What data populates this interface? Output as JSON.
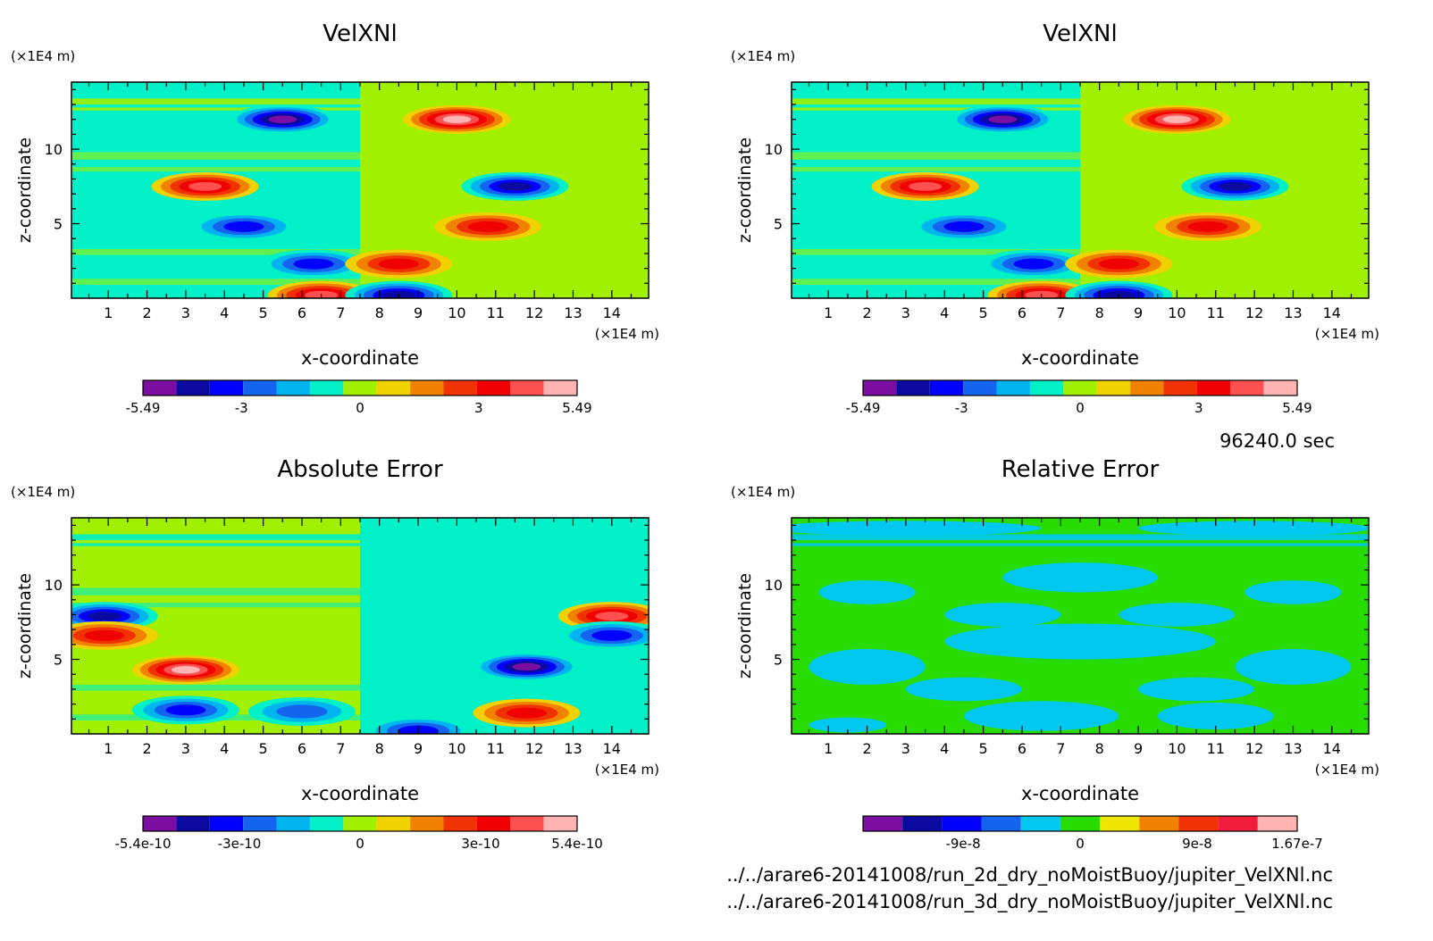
{
  "figure": {
    "time_label": "96240.0 sec",
    "files": [
      "../../arare6-20141008/run_2d_dry_noMoistBuoy/jupiter_VelXNl.nc",
      "../../arare6-20141008/run_3d_dry_noMoistBuoy/jupiter_VelXNl.nc"
    ]
  },
  "chart_data": [
    {
      "type": "heatmap",
      "title": "VelXNl",
      "xlabel": "x-coordinate",
      "ylabel": "z-coordinate",
      "x_unit": "(×1E4 m)",
      "y_unit": "(×1E4 m)",
      "xlim": [
        0.05,
        14.95
      ],
      "ylim": [
        0,
        14.5
      ],
      "xticks": [
        "1",
        "2",
        "3",
        "4",
        "5",
        "6",
        "7",
        "8",
        "9",
        "10",
        "11",
        "12",
        "13",
        "14"
      ],
      "yticks": [
        "5",
        "10"
      ],
      "colorbar": {
        "range": [
          -5.49,
          5.49
        ],
        "ticks": [
          "-5.49",
          "-3",
          "0",
          "3",
          "5.49"
        ],
        "colors": [
          "#7b0ea0",
          "#0a0aa0",
          "#0000ff",
          "#1464f0",
          "#00b4f0",
          "#00f0c8",
          "#a0f000",
          "#f0d200",
          "#f08200",
          "#f03200",
          "#f00000",
          "#ff5050",
          "#ffb4b4"
        ]
      },
      "background_left": "#00f0c8",
      "background_right": "#a0f000",
      "blobs": [
        {
          "x": 5.5,
          "y": 12.0,
          "value": -4.5
        },
        {
          "x": 10.0,
          "y": 12.0,
          "value": 5.0
        },
        {
          "x": 3.5,
          "y": 7.5,
          "value": 3.5
        },
        {
          "x": 11.5,
          "y": 7.5,
          "value": -3.5
        },
        {
          "x": 4.5,
          "y": 4.8,
          "value": -3.0
        },
        {
          "x": 10.8,
          "y": 4.8,
          "value": 3.0
        },
        {
          "x": 6.3,
          "y": 2.3,
          "value": -3.0
        },
        {
          "x": 8.5,
          "y": 2.3,
          "value": 3.0
        },
        {
          "x": 6.5,
          "y": 0.2,
          "value": 3.5
        },
        {
          "x": 8.5,
          "y": 0.2,
          "value": -3.5
        }
      ]
    },
    {
      "type": "heatmap",
      "title": "VelXNl",
      "xlabel": "x-coordinate",
      "ylabel": "z-coordinate",
      "x_unit": "(×1E4 m)",
      "y_unit": "(×1E4 m)",
      "xlim": [
        0.05,
        14.95
      ],
      "ylim": [
        0,
        14.5
      ],
      "xticks": [
        "1",
        "2",
        "3",
        "4",
        "5",
        "6",
        "7",
        "8",
        "9",
        "10",
        "11",
        "12",
        "13",
        "14"
      ],
      "yticks": [
        "5",
        "10"
      ],
      "colorbar": {
        "range": [
          -5.49,
          5.49
        ],
        "ticks": [
          "-5.49",
          "-3",
          "0",
          "3",
          "5.49"
        ],
        "colors": [
          "#7b0ea0",
          "#0a0aa0",
          "#0000ff",
          "#1464f0",
          "#00b4f0",
          "#00f0c8",
          "#a0f000",
          "#f0d200",
          "#f08200",
          "#f03200",
          "#f00000",
          "#ff5050",
          "#ffb4b4"
        ]
      },
      "background_left": "#00f0c8",
      "background_right": "#a0f000",
      "blobs": [
        {
          "x": 5.5,
          "y": 12.0,
          "value": -4.5
        },
        {
          "x": 10.0,
          "y": 12.0,
          "value": 5.0
        },
        {
          "x": 3.5,
          "y": 7.5,
          "value": 3.5
        },
        {
          "x": 11.5,
          "y": 7.5,
          "value": -3.5
        },
        {
          "x": 4.5,
          "y": 4.8,
          "value": -3.0
        },
        {
          "x": 10.8,
          "y": 4.8,
          "value": 3.0
        },
        {
          "x": 6.3,
          "y": 2.3,
          "value": -3.0
        },
        {
          "x": 8.5,
          "y": 2.3,
          "value": 3.0
        },
        {
          "x": 6.5,
          "y": 0.2,
          "value": 3.5
        },
        {
          "x": 8.5,
          "y": 0.2,
          "value": -3.5
        }
      ]
    },
    {
      "type": "heatmap",
      "title": "Absolute Error",
      "xlabel": "x-coordinate",
      "ylabel": "z-coordinate",
      "x_unit": "(×1E4 m)",
      "y_unit": "(×1E4 m)",
      "xlim": [
        0.05,
        14.95
      ],
      "ylim": [
        0,
        14.5
      ],
      "xticks": [
        "1",
        "2",
        "3",
        "4",
        "5",
        "6",
        "7",
        "8",
        "9",
        "10",
        "11",
        "12",
        "13",
        "14"
      ],
      "yticks": [
        "5",
        "10"
      ],
      "colorbar": {
        "range": [
          -5.4e-10,
          5.4e-10
        ],
        "ticks": [
          "-5.4e-10",
          "-3e-10",
          "0",
          "3e-10",
          "5.4e-10"
        ],
        "colors": [
          "#7b0ea0",
          "#0a0aa0",
          "#0000ff",
          "#1464f0",
          "#00b4f0",
          "#00f0c8",
          "#a0f000",
          "#f0d200",
          "#f08200",
          "#f03200",
          "#f00000",
          "#ff5050",
          "#ffb4b4"
        ]
      },
      "background_left": "#a0f000",
      "background_right": "#00f0c8",
      "blobs": [
        {
          "x": 0.9,
          "y": 7.9,
          "value": -4.0
        },
        {
          "x": 0.9,
          "y": 6.6,
          "value": 3.0
        },
        {
          "x": 14.0,
          "y": 7.9,
          "value": 4.0
        },
        {
          "x": 14.0,
          "y": 6.6,
          "value": -3.0
        },
        {
          "x": 3.0,
          "y": 4.3,
          "value": 4.5
        },
        {
          "x": 11.8,
          "y": 4.5,
          "value": -4.5
        },
        {
          "x": 3.0,
          "y": 1.6,
          "value": -3.0
        },
        {
          "x": 11.8,
          "y": 1.4,
          "value": 3.0
        },
        {
          "x": 6.0,
          "y": 1.5,
          "value": -2.0
        },
        {
          "x": 9.0,
          "y": 0.2,
          "value": -3.0
        }
      ]
    },
    {
      "type": "heatmap",
      "title": "Relative Error",
      "xlabel": "x-coordinate",
      "ylabel": "z-coordinate",
      "x_unit": "(×1E4 m)",
      "y_unit": "(×1E4 m)",
      "xlim": [
        0.05,
        14.95
      ],
      "ylim": [
        0,
        14.5
      ],
      "xticks": [
        "1",
        "2",
        "3",
        "4",
        "5",
        "6",
        "7",
        "8",
        "9",
        "10",
        "11",
        "12",
        "13",
        "14"
      ],
      "yticks": [
        "5",
        "10"
      ],
      "colorbar": {
        "range": [
          -1.67e-07,
          1.67e-07
        ],
        "ticks": [
          "-9e-8",
          "0",
          "9e-8",
          "1.67e-7"
        ],
        "colors": [
          "#7b0ea0",
          "#0a0aa0",
          "#0000ff",
          "#1464f0",
          "#00c8f0",
          "#28dc00",
          "#f0e600",
          "#f08200",
          "#f03200",
          "#f01e3c",
          "#ffb4b4"
        ]
      },
      "background_left": "#28dc00",
      "background_right": "#28dc00",
      "blobs": []
    }
  ]
}
